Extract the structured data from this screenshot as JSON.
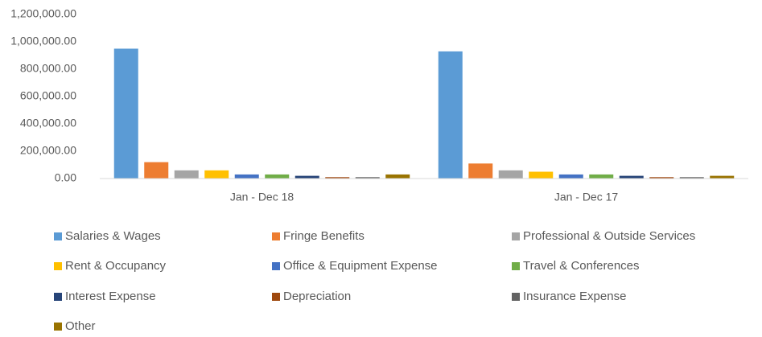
{
  "chart_data": {
    "type": "bar",
    "categories": [
      "Jan - Dec 18",
      "Jan - Dec 17"
    ],
    "series": [
      {
        "name": "Salaries & Wages",
        "color": "#5b9bd5",
        "values": [
          950000,
          930000
        ]
      },
      {
        "name": "Fringe Benefits",
        "color": "#ed7d31",
        "values": [
          120000,
          110000
        ]
      },
      {
        "name": "Professional & Outside Services",
        "color": "#a5a5a5",
        "values": [
          60000,
          60000
        ]
      },
      {
        "name": "Rent & Occupancy",
        "color": "#ffc000",
        "values": [
          60000,
          50000
        ]
      },
      {
        "name": "Office & Equipment Expense",
        "color": "#4472c4",
        "values": [
          30000,
          30000
        ]
      },
      {
        "name": "Travel & Conferences",
        "color": "#70ad47",
        "values": [
          30000,
          30000
        ]
      },
      {
        "name": "Interest Expense",
        "color": "#264478",
        "values": [
          20000,
          20000
        ]
      },
      {
        "name": "Depreciation",
        "color": "#9e480e",
        "values": [
          10000,
          10000
        ]
      },
      {
        "name": "Insurance Expense",
        "color": "#636363",
        "values": [
          10000,
          10000
        ]
      },
      {
        "name": "Other",
        "color": "#997300",
        "values": [
          30000,
          20000
        ]
      }
    ],
    "ylim": [
      0,
      1200000
    ],
    "yticks": [
      {
        "value": 0,
        "label": "0.00"
      },
      {
        "value": 200000,
        "label": "200,000.00"
      },
      {
        "value": 400000,
        "label": "400,000.00"
      },
      {
        "value": 600000,
        "label": "600,000.00"
      },
      {
        "value": 800000,
        "label": "800,000.00"
      },
      {
        "value": 1000000,
        "label": "1,000,000.00"
      },
      {
        "value": 1200000,
        "label": "1,200,000.00"
      }
    ],
    "grid": false,
    "legend": "bottom"
  }
}
